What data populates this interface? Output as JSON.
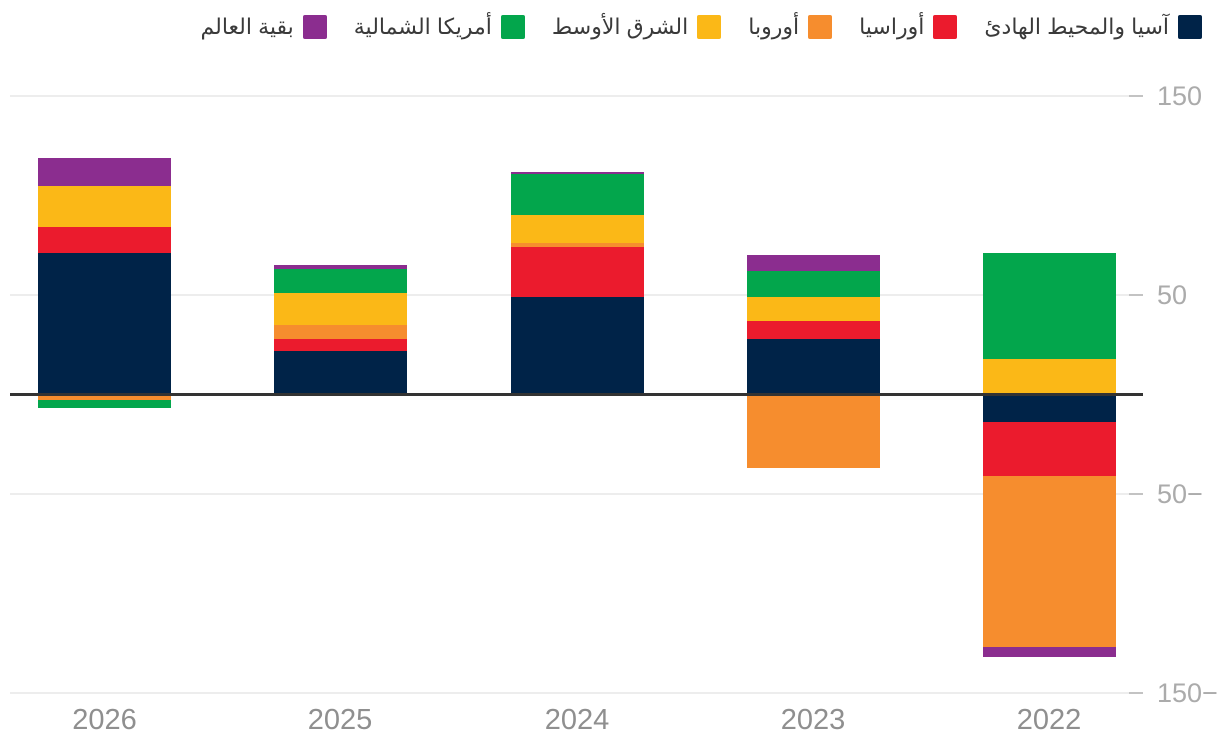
{
  "chart_data": {
    "type": "bar",
    "stacked": true,
    "direction": "rtl",
    "title": "",
    "xlabel": "",
    "ylabel": "",
    "categories": [
      "2026",
      "2025",
      "2024",
      "2023",
      "2022"
    ],
    "series": [
      {
        "name": "آسيا والمحيط الهادئ",
        "color": "#002348",
        "values": [
          71,
          22,
          49,
          28,
          -14
        ]
      },
      {
        "name": "أوراسيا",
        "color": "#EB1B2D",
        "values": [
          13,
          6,
          25,
          9,
          -27
        ]
      },
      {
        "name": "أوروبا",
        "color": "#F68D2E",
        "values": [
          -3,
          7,
          2,
          -37,
          -86
        ]
      },
      {
        "name": "الشرق الأوسط",
        "color": "#FBB817",
        "values": [
          21,
          16,
          14,
          12,
          18
        ]
      },
      {
        "name": "أمريكا الشمالية",
        "color": "#03A64C",
        "values": [
          -4,
          12,
          21,
          13,
          53
        ]
      },
      {
        "name": "بقية العالم",
        "color": "#8B2D8F",
        "values": [
          14,
          2,
          1,
          8,
          -5
        ]
      }
    ],
    "ylim": [
      -150,
      150
    ],
    "yticks": [
      {
        "value": 150,
        "label": "150"
      },
      {
        "value": 50,
        "label": "50"
      },
      {
        "value": -50,
        "label": "50−"
      },
      {
        "value": -150,
        "label": "150−"
      }
    ],
    "grid": true,
    "legend_position": "top-right",
    "zero_baseline": true
  },
  "colors": {
    "gridline": "#ededed",
    "grid_tick": "#c3c3c3",
    "zero_line": "#333333",
    "y_label": "#ababab",
    "x_label": "#8f8f8f",
    "legend_text": "#3a3a3a",
    "background": "#ffffff"
  }
}
